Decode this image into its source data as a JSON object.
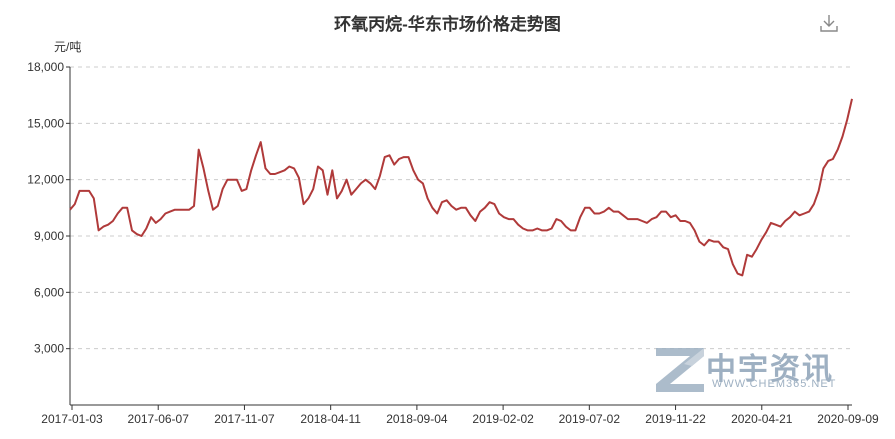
{
  "chart_data": {
    "type": "line",
    "title": "环氧丙烷-华东市场价格走势图",
    "unit_label": "元/吨",
    "ylim": [
      0,
      18000
    ],
    "y_ticks": [
      "3,000",
      "6,000",
      "9,000",
      "12,000",
      "15,000",
      "18,000"
    ],
    "y_tick_values": [
      3000,
      6000,
      9000,
      12000,
      15000,
      18000
    ],
    "x_ticks": [
      "2017-01-03",
      "2017-06-07",
      "2017-11-07",
      "2018-04-11",
      "2018-09-04",
      "2019-02-02",
      "2019-07-02",
      "2019-11-22",
      "2020-04-21",
      "2020-09-09"
    ],
    "grid": true,
    "line_color": "#b03a3a",
    "series": [
      {
        "name": "",
        "x_range": [
          "2017-01-03",
          "2020-09-09"
        ],
        "values": [
          10400,
          10700,
          11400,
          11400,
          11400,
          11000,
          9300,
          9500,
          9600,
          9800,
          10200,
          10500,
          10500,
          9300,
          9100,
          9000,
          9400,
          10000,
          9700,
          9900,
          10200,
          10300,
          10400,
          10400,
          10400,
          10400,
          10600,
          13600,
          12600,
          11400,
          10400,
          10600,
          11500,
          12000,
          12000,
          12000,
          11400,
          11500,
          12500,
          13300,
          14000,
          12600,
          12300,
          12300,
          12400,
          12500,
          12700,
          12600,
          12100,
          10700,
          11000,
          11500,
          12700,
          12500,
          11200,
          12500,
          11000,
          11400,
          12000,
          11200,
          11500,
          11800,
          12000,
          11800,
          11500,
          12200,
          13200,
          13300,
          12800,
          13100,
          13200,
          13200,
          12500,
          12000,
          11800,
          11000,
          10500,
          10200,
          10800,
          10900,
          10600,
          10400,
          10500,
          10500,
          10100,
          9800,
          10300,
          10500,
          10800,
          10700,
          10200,
          10000,
          9900,
          9900,
          9600,
          9400,
          9300,
          9300,
          9400,
          9300,
          9300,
          9400,
          9900,
          9800,
          9500,
          9300,
          9300,
          10000,
          10500,
          10500,
          10200,
          10200,
          10300,
          10500,
          10300,
          10300,
          10100,
          9900,
          9900,
          9900,
          9800,
          9700,
          9900,
          10000,
          10300,
          10300,
          10000,
          10100,
          9800,
          9800,
          9700,
          9300,
          8700,
          8500,
          8800,
          8700,
          8700,
          8400,
          8300,
          7500,
          7000,
          6900,
          8000,
          7900,
          8300,
          8800,
          9200,
          9700,
          9600,
          9500,
          9800,
          10000,
          10300,
          10100,
          10200,
          10300,
          10700,
          11400,
          12600,
          13000,
          13100,
          13600,
          14300,
          15200,
          16300
        ]
      }
    ]
  },
  "watermark": {
    "text_cn": "中宇资讯",
    "text_en": "WWW.CHEM365.NET",
    "color": "#9eb0c2"
  },
  "icons": {
    "download": "download-icon"
  }
}
